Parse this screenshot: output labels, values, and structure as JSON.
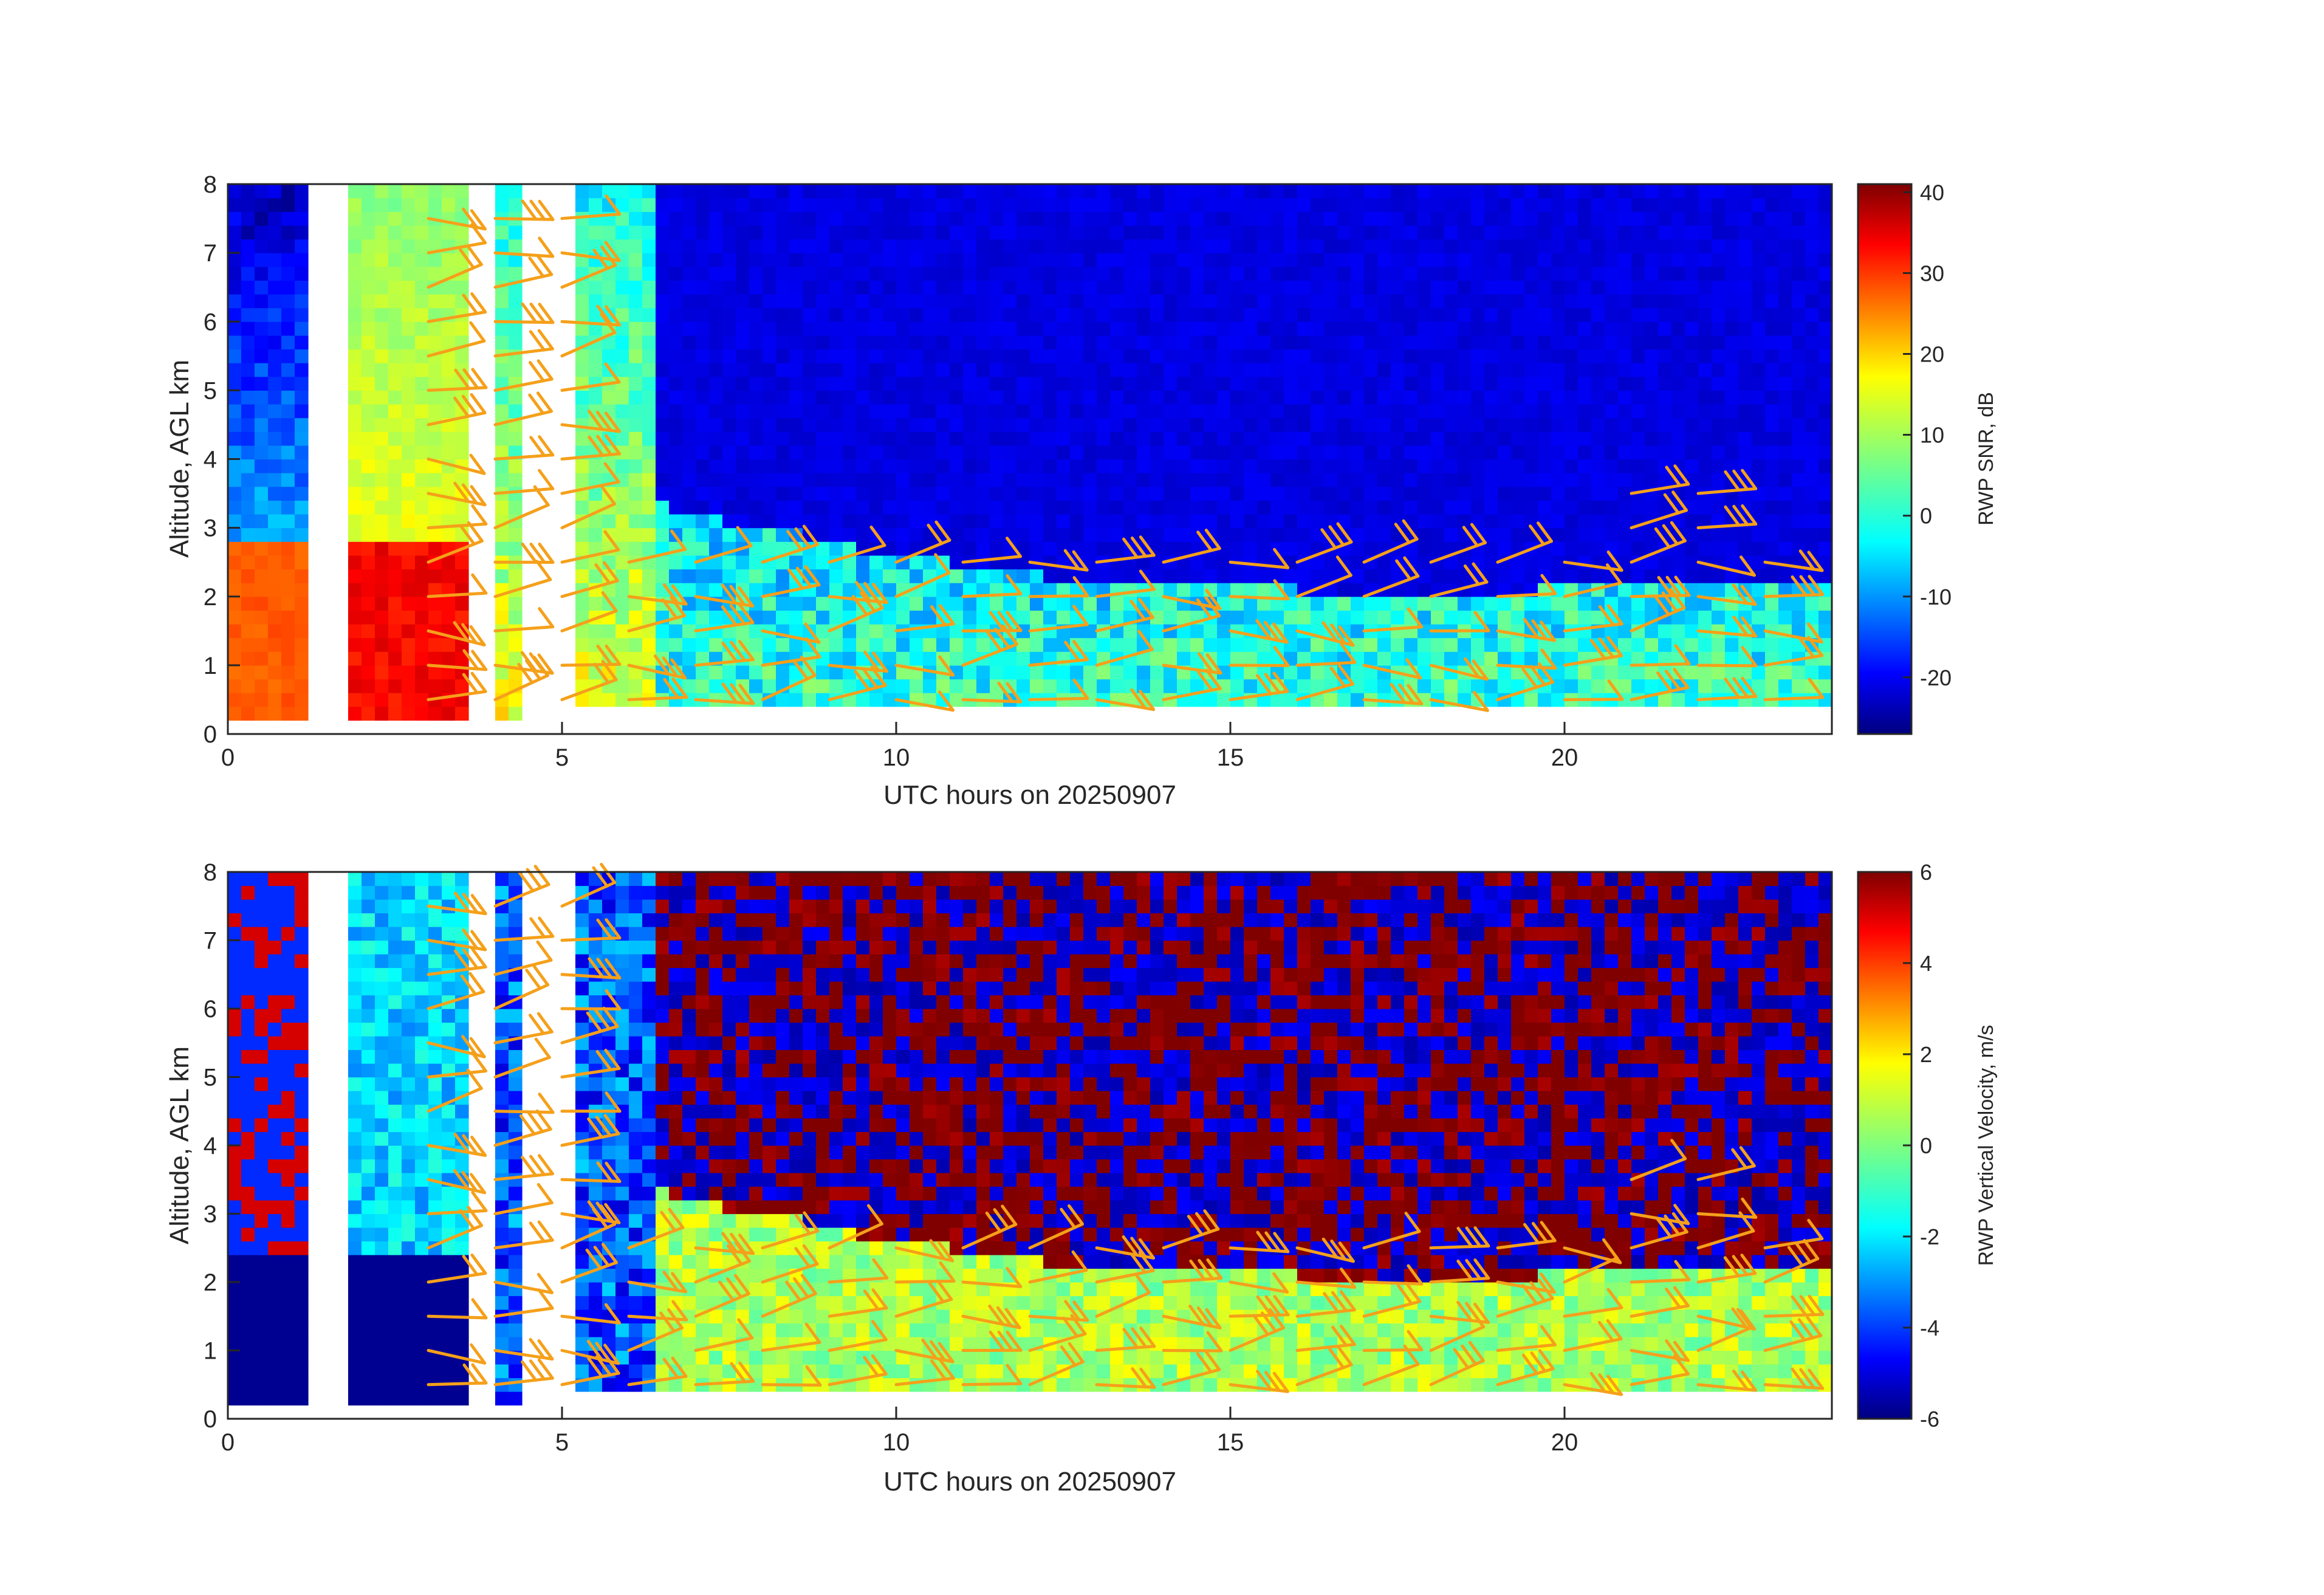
{
  "chart_data": [
    {
      "type": "heatmap",
      "title": "",
      "xlabel": "UTC hours on 20250907",
      "ylabel": "Altitude, AGL km",
      "xlim": [
        0,
        24
      ],
      "ylim": [
        0,
        8
      ],
      "x_ticks": [
        "0",
        "5",
        "10",
        "15",
        "20"
      ],
      "y_ticks": [
        "0",
        "1",
        "2",
        "3",
        "4",
        "5",
        "6",
        "7",
        "8"
      ],
      "colorbar": {
        "label": "RWP SNR, dB",
        "range": [
          -27,
          41
        ],
        "ticks": [
          "-20",
          "-10",
          "0",
          "10",
          "20",
          "30",
          "40"
        ],
        "colormap": "jet"
      },
      "data_gaps_x": [
        [
          1.3,
          1.8
        ],
        [
          3.6,
          3.9
        ],
        [
          4.5,
          4.7
        ],
        [
          4.9,
          5.2
        ]
      ],
      "field_description_values": {
        "boundary_layer_top_km": [
          [
            0,
            2.9
          ],
          [
            4,
            3.5
          ],
          [
            6,
            3.5
          ],
          [
            7,
            3.2
          ],
          [
            10,
            2.6
          ],
          [
            13,
            2.2
          ],
          [
            16,
            2.1
          ],
          [
            19,
            2.0
          ],
          [
            21,
            2.3
          ],
          [
            24,
            2.3
          ]
        ],
        "max_snr_db_region": [
          [
            2.5,
            3.0,
            2.3,
            35
          ]
        ]
      },
      "wind_barb_color": "#f5a01a"
    },
    {
      "type": "heatmap",
      "title": "",
      "xlabel": "UTC hours on 20250907",
      "ylabel": "Altitude, AGL km",
      "xlim": [
        0,
        24
      ],
      "ylim": [
        0,
        8
      ],
      "x_ticks": [
        "0",
        "5",
        "10",
        "15",
        "20"
      ],
      "y_ticks": [
        "0",
        "1",
        "2",
        "3",
        "4",
        "5",
        "6",
        "7",
        "8"
      ],
      "colorbar": {
        "label": "RWP Vertical Velocity, m/s",
        "range": [
          -6,
          6
        ],
        "ticks": [
          "-6",
          "-4",
          "-2",
          "0",
          "2",
          "4",
          "6"
        ],
        "colormap": "jet"
      },
      "data_gaps_x": [
        [
          1.3,
          1.8
        ],
        [
          3.6,
          3.9
        ],
        [
          4.5,
          4.7
        ],
        [
          4.9,
          5.2
        ]
      ],
      "wind_barb_color": "#f5a01a"
    }
  ],
  "colors": {
    "axis": "#262626",
    "barb": "#f5a01a",
    "gap": "#ffffff"
  }
}
